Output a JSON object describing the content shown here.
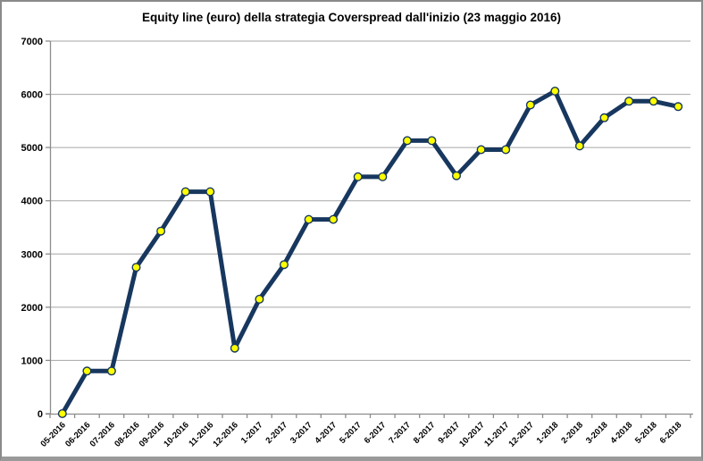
{
  "chart_data": {
    "type": "line",
    "title": "Equity line (euro) della strategia Coverspread dall'inizio (23 maggio 2016)",
    "xlabel": "",
    "ylabel": "",
    "categories": [
      "05-2016",
      "06-2016",
      "07-2016",
      "08-2016",
      "09-2016",
      "10-2016",
      "11-2016",
      "12-2016",
      "1-2017",
      "2-2017",
      "3-2017",
      "4-2017",
      "5-2017",
      "6-2017",
      "7-2017",
      "8-2017",
      "9-2017",
      "10-2017",
      "11-2017",
      "12-2017",
      "1-2018",
      "2-2018",
      "3-2018",
      "4-2018",
      "5-2018",
      "6-2018"
    ],
    "series": [
      {
        "name": "Equity line (euro)",
        "values": [
          0,
          800,
          800,
          2750,
          3430,
          4170,
          4170,
          1230,
          2150,
          2800,
          3650,
          3650,
          4450,
          4450,
          5130,
          5130,
          4470,
          4960,
          4960,
          5800,
          6060,
          5030,
          5560,
          5870,
          5870,
          5770
        ]
      }
    ],
    "ylim": [
      0,
      7000
    ],
    "yticks": [
      0,
      1000,
      2000,
      3000,
      4000,
      5000,
      6000,
      7000
    ],
    "grid": "horizontal",
    "legend": "none",
    "colors": {
      "line": "#17375E",
      "marker_fill": "#FFFF00",
      "marker_stroke": "#17375E",
      "gridline": "#A6A6A6",
      "axis": "#8C8C8C",
      "tick_text": "#000000",
      "background": "#FFFFFF"
    }
  }
}
